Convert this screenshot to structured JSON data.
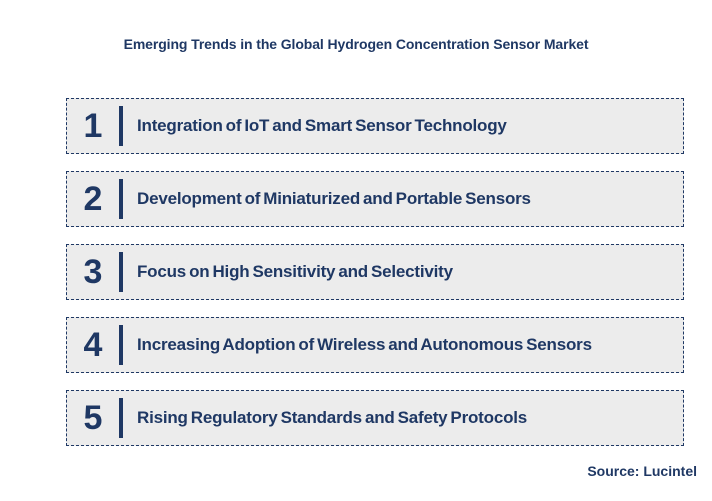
{
  "title": "Emerging Trends in the Global Hydrogen Concentration Sensor Market",
  "trends": [
    {
      "number": "1",
      "label": "Integration of IoT and Smart Sensor Technology"
    },
    {
      "number": "2",
      "label": "Development of Miniaturized and Portable Sensors"
    },
    {
      "number": "3",
      "label": "Focus on High Sensitivity and Selectivity"
    },
    {
      "number": "4",
      "label": "Increasing Adoption of Wireless and Autonomous Sensors"
    },
    {
      "number": "5",
      "label": "Rising Regulatory Standards and Safety Protocols"
    }
  ],
  "source": "Source: Lucintel",
  "colors": {
    "navy": "#1F3864",
    "row_background": "#ECECEC",
    "page_background": "#FFFFFF"
  }
}
